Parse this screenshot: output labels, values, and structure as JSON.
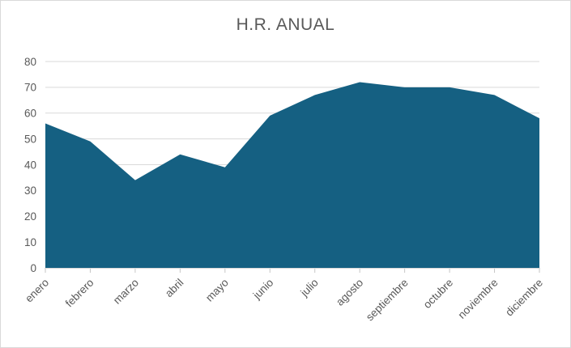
{
  "chart": {
    "title": "H.R. ANUAL"
  },
  "chart_data": {
    "type": "area",
    "title": "H.R. ANUAL",
    "categories": [
      "enero",
      "febrero",
      "marzo",
      "abril",
      "mayo",
      "junio",
      "julio",
      "agosto",
      "septiembre",
      "octubre",
      "noviembre",
      "diciembre"
    ],
    "values": [
      56,
      49,
      34,
      44,
      39,
      59,
      67,
      72,
      70,
      70,
      67,
      58
    ],
    "xlabel": "",
    "ylabel": "",
    "ylim": [
      0,
      80
    ],
    "ytick_step": 10,
    "grid": true,
    "legend_position": "none",
    "x_label_rotation_deg": 45,
    "colors": {
      "area_fill": "#156082",
      "gridline": "#d9d9d9",
      "axis_line": "#d9d9d9",
      "tick_mark": "#c6c6c6",
      "axis_text": "#595959",
      "title_text": "#595959",
      "chart_border": "#d9d9d9",
      "background": "#ffffff"
    }
  }
}
